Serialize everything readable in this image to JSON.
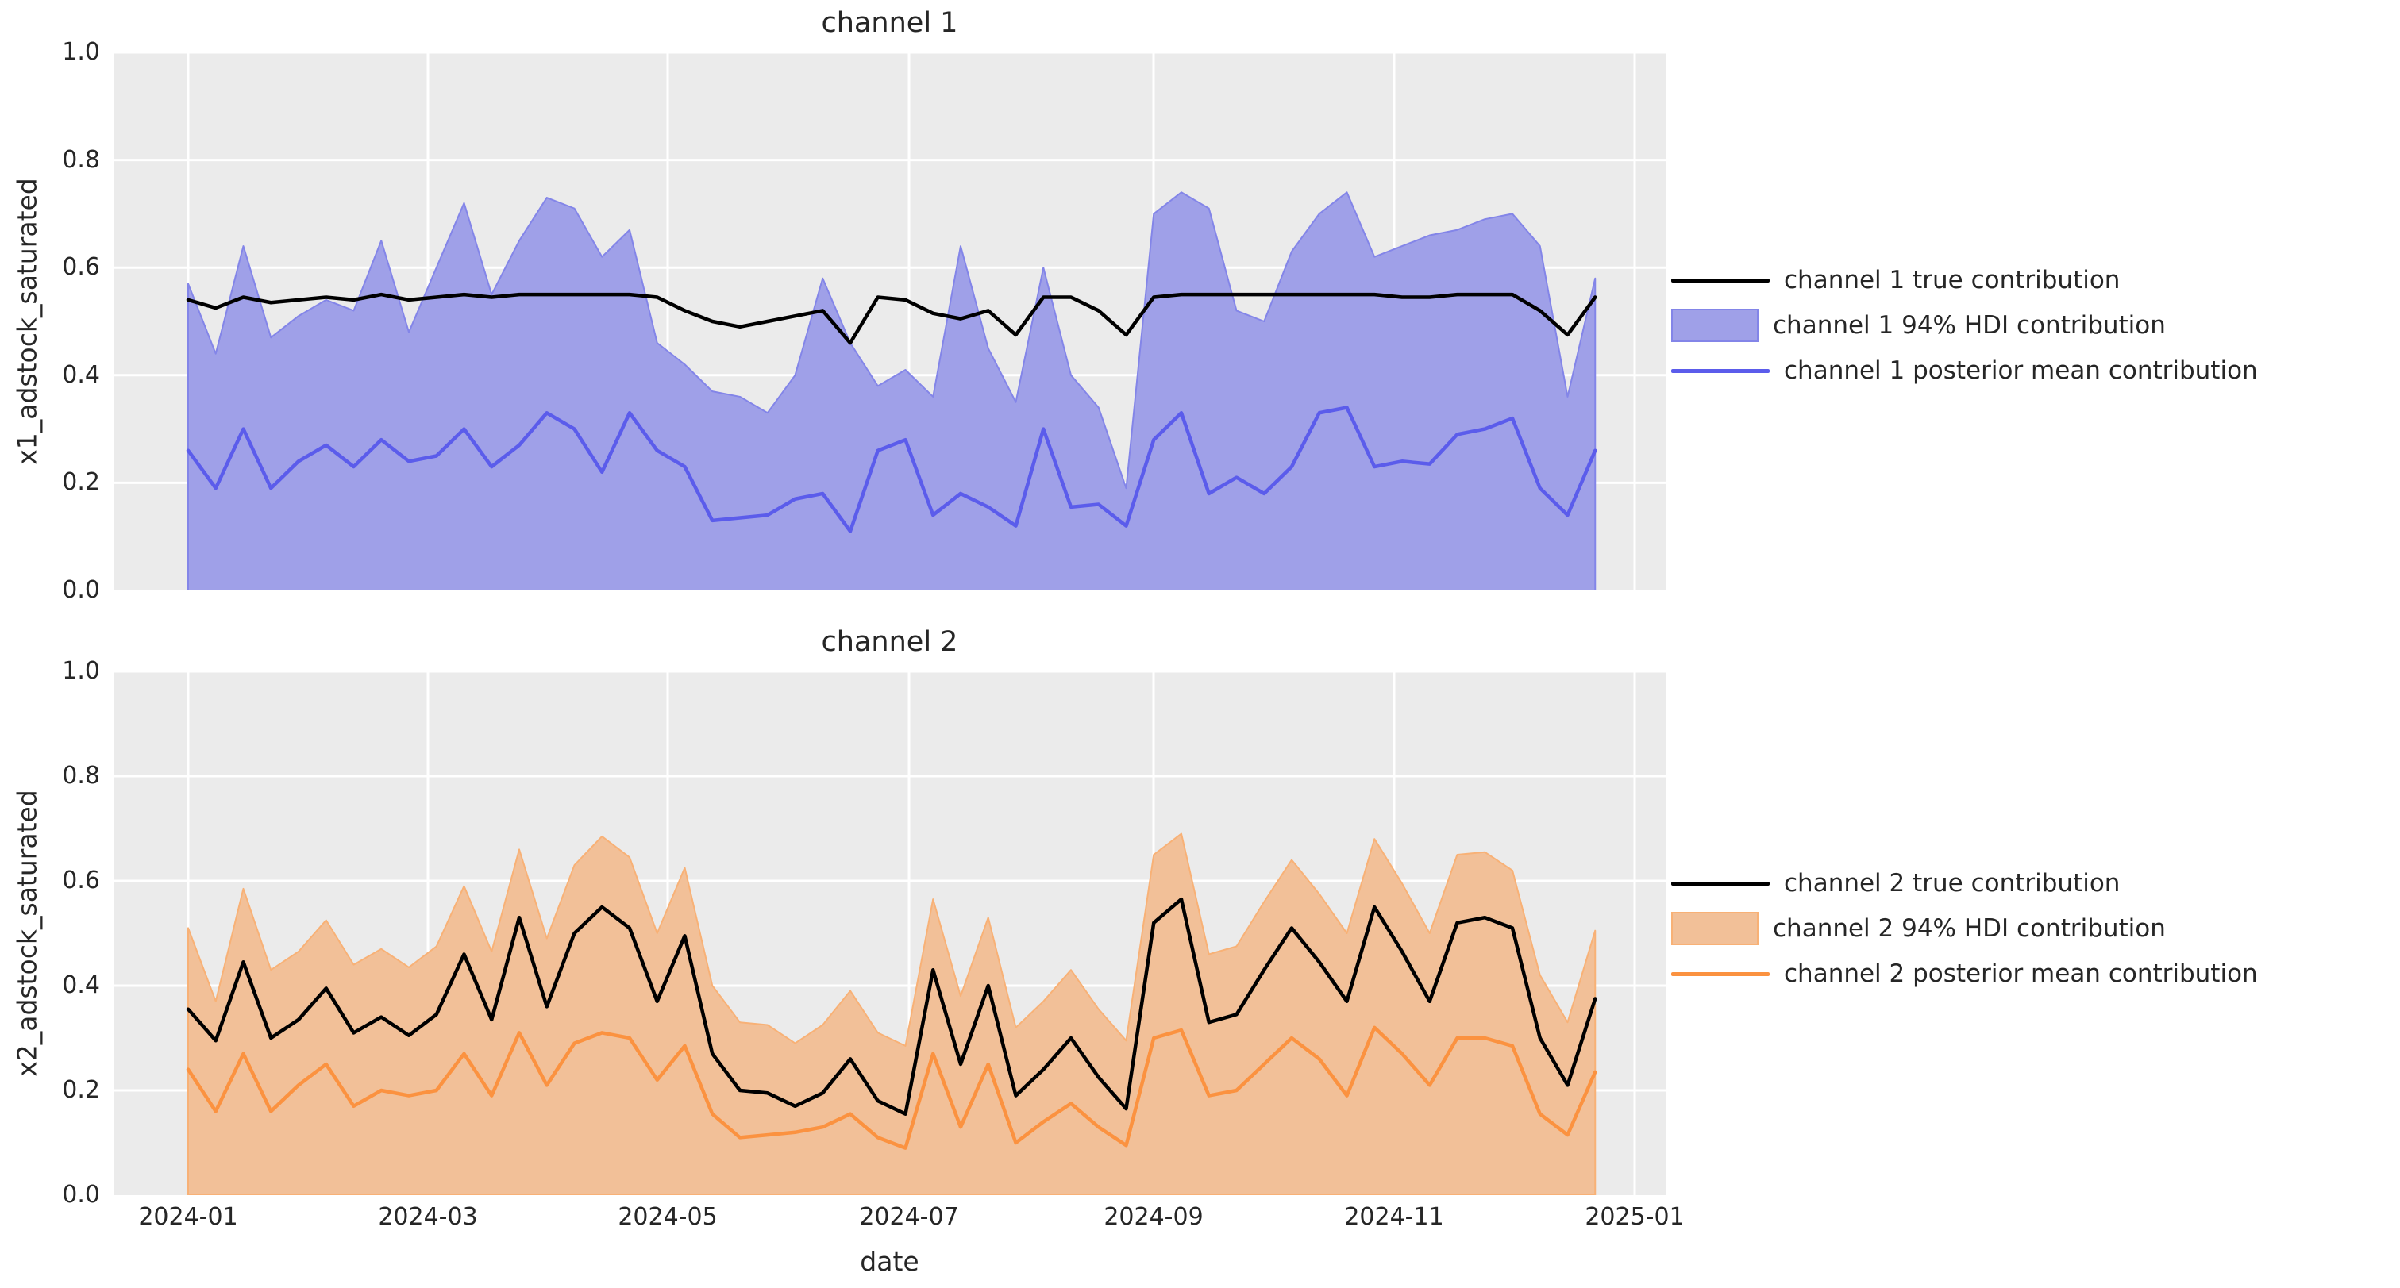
{
  "figure": {
    "background": "#ffffff",
    "axes_background": "#ebebeb",
    "grid_color": "#ffffff",
    "text_color": "#262626",
    "true_color": "#000000",
    "ch1_line_color": "#5b5ceb",
    "ch1_band_fill": "#9fa0e8",
    "ch1_band_edge": "#8385e8",
    "ch2_line_color": "#fb9240",
    "ch2_band_fill": "#f2c098",
    "ch2_band_edge": "#f8b176"
  },
  "xlabel": "date",
  "x_tick_labels": [
    "2024-01",
    "2024-03",
    "2024-05",
    "2024-07",
    "2024-09",
    "2024-11",
    "2025-01"
  ],
  "y_tick_labels": [
    "0.0",
    "0.2",
    "0.4",
    "0.6",
    "0.8",
    "1.0"
  ],
  "chart_data": [
    {
      "type": "line+band",
      "title": "channel 1",
      "ylabel": "x1_adstock_saturated",
      "ylim": [
        0.0,
        1.0
      ],
      "grid": true,
      "legend_position": "right",
      "x_dates": [
        "2024-01-01",
        "2024-01-08",
        "2024-01-15",
        "2024-01-22",
        "2024-01-29",
        "2024-02-05",
        "2024-02-12",
        "2024-02-19",
        "2024-02-26",
        "2024-03-04",
        "2024-03-11",
        "2024-03-18",
        "2024-03-25",
        "2024-04-01",
        "2024-04-08",
        "2024-04-15",
        "2024-04-22",
        "2024-04-29",
        "2024-05-06",
        "2024-05-13",
        "2024-05-20",
        "2024-05-27",
        "2024-06-03",
        "2024-06-10",
        "2024-06-17",
        "2024-06-24",
        "2024-07-01",
        "2024-07-08",
        "2024-07-15",
        "2024-07-22",
        "2024-07-29",
        "2024-08-05",
        "2024-08-12",
        "2024-08-19",
        "2024-08-26",
        "2024-09-02",
        "2024-09-09",
        "2024-09-16",
        "2024-09-23",
        "2024-09-30",
        "2024-10-07",
        "2024-10-14",
        "2024-10-21",
        "2024-10-28",
        "2024-11-04",
        "2024-11-11",
        "2024-11-18",
        "2024-11-25",
        "2024-12-02",
        "2024-12-09",
        "2024-12-16",
        "2024-12-23"
      ],
      "series": [
        {
          "name": "channel 1 true contribution",
          "kind": "line",
          "color": "#000000",
          "values": [
            0.54,
            0.525,
            0.545,
            0.535,
            0.54,
            0.545,
            0.54,
            0.55,
            0.54,
            0.545,
            0.55,
            0.545,
            0.55,
            0.55,
            0.55,
            0.55,
            0.55,
            0.545,
            0.52,
            0.5,
            0.49,
            0.5,
            0.51,
            0.52,
            0.46,
            0.545,
            0.54,
            0.515,
            0.505,
            0.52,
            0.475,
            0.545,
            0.545,
            0.52,
            0.475,
            0.545,
            0.55,
            0.55,
            0.55,
            0.55,
            0.55,
            0.55,
            0.55,
            0.55,
            0.545,
            0.545,
            0.55,
            0.55,
            0.55,
            0.52,
            0.475,
            0.545
          ]
        },
        {
          "name": "channel 1 94% HDI contribution",
          "kind": "band",
          "fill": "#9fa0e8",
          "edge": "#8385e8",
          "lower": 0.0,
          "upper": [
            0.57,
            0.44,
            0.64,
            0.47,
            0.51,
            0.54,
            0.52,
            0.65,
            0.48,
            0.6,
            0.72,
            0.55,
            0.65,
            0.73,
            0.71,
            0.62,
            0.67,
            0.46,
            0.42,
            0.37,
            0.36,
            0.33,
            0.4,
            0.58,
            0.46,
            0.38,
            0.41,
            0.36,
            0.64,
            0.45,
            0.35,
            0.6,
            0.4,
            0.34,
            0.19,
            0.7,
            0.74,
            0.71,
            0.52,
            0.5,
            0.63,
            0.7,
            0.74,
            0.62,
            0.64,
            0.66,
            0.67,
            0.69,
            0.7,
            0.64,
            0.36,
            0.58
          ]
        },
        {
          "name": "channel 1 posterior mean contribution",
          "kind": "line",
          "color": "#5b5ceb",
          "values": [
            0.26,
            0.19,
            0.3,
            0.19,
            0.24,
            0.27,
            0.23,
            0.28,
            0.24,
            0.25,
            0.3,
            0.23,
            0.27,
            0.33,
            0.3,
            0.22,
            0.33,
            0.26,
            0.23,
            0.13,
            0.135,
            0.14,
            0.17,
            0.18,
            0.11,
            0.26,
            0.28,
            0.14,
            0.18,
            0.155,
            0.12,
            0.3,
            0.155,
            0.16,
            0.12,
            0.28,
            0.33,
            0.18,
            0.21,
            0.18,
            0.23,
            0.33,
            0.34,
            0.23,
            0.24,
            0.235,
            0.29,
            0.3,
            0.32,
            0.19,
            0.14,
            0.26
          ]
        }
      ]
    },
    {
      "type": "line+band",
      "title": "channel 2",
      "ylabel": "x2_adstock_saturated",
      "ylim": [
        0.0,
        1.0
      ],
      "grid": true,
      "legend_position": "right",
      "x_dates": [
        "2024-01-01",
        "2024-01-08",
        "2024-01-15",
        "2024-01-22",
        "2024-01-29",
        "2024-02-05",
        "2024-02-12",
        "2024-02-19",
        "2024-02-26",
        "2024-03-04",
        "2024-03-11",
        "2024-03-18",
        "2024-03-25",
        "2024-04-01",
        "2024-04-08",
        "2024-04-15",
        "2024-04-22",
        "2024-04-29",
        "2024-05-06",
        "2024-05-13",
        "2024-05-20",
        "2024-05-27",
        "2024-06-03",
        "2024-06-10",
        "2024-06-17",
        "2024-06-24",
        "2024-07-01",
        "2024-07-08",
        "2024-07-15",
        "2024-07-22",
        "2024-07-29",
        "2024-08-05",
        "2024-08-12",
        "2024-08-19",
        "2024-08-26",
        "2024-09-02",
        "2024-09-09",
        "2024-09-16",
        "2024-09-23",
        "2024-09-30",
        "2024-10-07",
        "2024-10-14",
        "2024-10-21",
        "2024-10-28",
        "2024-11-04",
        "2024-11-11",
        "2024-11-18",
        "2024-11-25",
        "2024-12-02",
        "2024-12-09",
        "2024-12-16",
        "2024-12-23"
      ],
      "series": [
        {
          "name": "channel 2 true contribution",
          "kind": "line",
          "color": "#000000",
          "values": [
            0.355,
            0.295,
            0.445,
            0.3,
            0.335,
            0.395,
            0.31,
            0.34,
            0.305,
            0.345,
            0.46,
            0.335,
            0.53,
            0.36,
            0.5,
            0.55,
            0.51,
            0.37,
            0.495,
            0.27,
            0.2,
            0.195,
            0.17,
            0.195,
            0.26,
            0.18,
            0.155,
            0.43,
            0.25,
            0.4,
            0.19,
            0.24,
            0.3,
            0.225,
            0.165,
            0.52,
            0.565,
            0.33,
            0.345,
            0.43,
            0.51,
            0.445,
            0.37,
            0.55,
            0.465,
            0.37,
            0.52,
            0.53,
            0.51,
            0.3,
            0.21,
            0.375
          ]
        },
        {
          "name": "channel 2 94% HDI contribution",
          "kind": "band",
          "fill": "#f2c098",
          "edge": "#f8b176",
          "lower": 0.0,
          "upper": [
            0.51,
            0.37,
            0.585,
            0.43,
            0.465,
            0.525,
            0.44,
            0.47,
            0.435,
            0.475,
            0.59,
            0.465,
            0.66,
            0.49,
            0.63,
            0.685,
            0.645,
            0.5,
            0.625,
            0.4,
            0.33,
            0.325,
            0.29,
            0.325,
            0.39,
            0.31,
            0.285,
            0.565,
            0.38,
            0.53,
            0.32,
            0.37,
            0.43,
            0.355,
            0.295,
            0.65,
            0.69,
            0.46,
            0.475,
            0.56,
            0.64,
            0.575,
            0.5,
            0.68,
            0.595,
            0.5,
            0.65,
            0.655,
            0.62,
            0.42,
            0.33,
            0.505
          ]
        },
        {
          "name": "channel 2 posterior mean contribution",
          "kind": "line",
          "color": "#fb9240",
          "values": [
            0.24,
            0.16,
            0.27,
            0.16,
            0.21,
            0.25,
            0.17,
            0.2,
            0.19,
            0.2,
            0.27,
            0.19,
            0.31,
            0.21,
            0.29,
            0.31,
            0.3,
            0.22,
            0.285,
            0.155,
            0.11,
            0.115,
            0.12,
            0.13,
            0.155,
            0.11,
            0.09,
            0.27,
            0.13,
            0.25,
            0.1,
            0.14,
            0.175,
            0.13,
            0.095,
            0.3,
            0.315,
            0.19,
            0.2,
            0.25,
            0.3,
            0.26,
            0.19,
            0.32,
            0.27,
            0.21,
            0.3,
            0.3,
            0.285,
            0.155,
            0.115,
            0.235
          ]
        }
      ]
    }
  ]
}
